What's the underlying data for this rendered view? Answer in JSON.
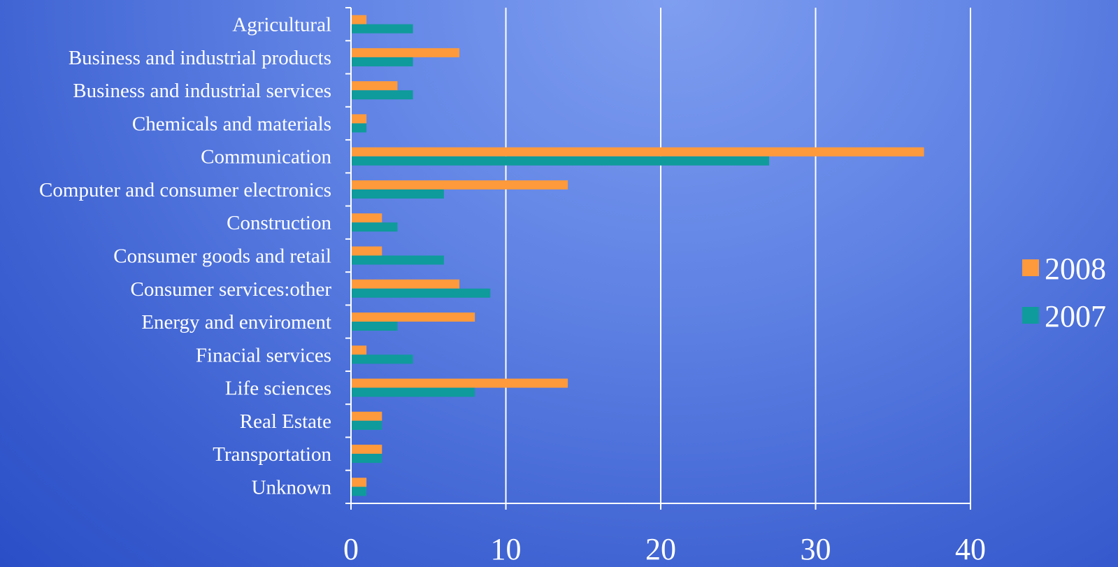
{
  "chart_data": {
    "type": "bar",
    "orientation": "horizontal",
    "categories": [
      "Agricultural",
      "Business and industrial products",
      "Business and industrial services",
      "Chemicals and materials",
      "Communication",
      "Computer and consumer electronics",
      "Construction",
      "Consumer goods and retail",
      "Consumer services:other",
      "Energy and enviroment",
      "Finacial services",
      "Life sciences",
      "Real Estate",
      "Transportation",
      "Unknown"
    ],
    "series": [
      {
        "name": "2008",
        "color": "#ff9a3c",
        "values": [
          1,
          7,
          3,
          1,
          37,
          14,
          2,
          2,
          7,
          8,
          1,
          14,
          2,
          2,
          1
        ]
      },
      {
        "name": "2007",
        "color": "#0f9b9b",
        "values": [
          4,
          4,
          4,
          1,
          27,
          6,
          3,
          6,
          9,
          3,
          4,
          8,
          2,
          2,
          1
        ]
      }
    ],
    "xlim": [
      0,
      40
    ],
    "xticks": [
      "0",
      "10",
      "20",
      "30",
      "40"
    ],
    "grid": true,
    "legend_position": "right"
  }
}
